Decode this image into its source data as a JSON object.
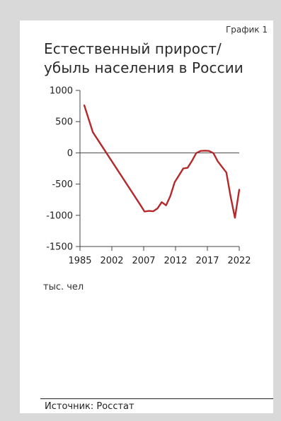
{
  "figure_number": "График 1",
  "title_lines": [
    "Естественный прирост/",
    "убыль населения в России"
  ],
  "unit_label": "тыс. чел",
  "source": "Источник: Росстат",
  "colors": {
    "series": "#b5292b",
    "axis": "#444444",
    "background": "#d9d9d9"
  },
  "chart_data": {
    "type": "line",
    "title": "Естественный прирост/ убыль населения в России",
    "ylabel": "тыс. чел",
    "xlim": [
      1985,
      2022
    ],
    "ylim": [
      -1500,
      1000
    ],
    "x_ticks": [
      1985,
      2002,
      2007,
      2012,
      2017,
      2022
    ],
    "y_ticks": [
      1000,
      500,
      0,
      -500,
      -1000,
      -1500
    ],
    "y_tick_labels": [
      "1000",
      "500",
      "0",
      "-500",
      "-1000",
      "-1500"
    ],
    "grid": false,
    "series": [
      {
        "x": [
          1986,
          1988,
          1999,
          2000,
          2001,
          2002,
          2003,
          2004,
          2005,
          2006,
          2007,
          2008,
          2009,
          2010,
          2011,
          2012,
          2013,
          2014,
          2015,
          2016,
          2017,
          2018,
          2019,
          2020,
          2021,
          2022
        ],
        "y": [
          760,
          330,
          -830,
          -940,
          -930,
          -935,
          -890,
          -790,
          -840,
          -690,
          -470,
          -360,
          -250,
          -240,
          -130,
          -5,
          30,
          35,
          30,
          -5,
          -135,
          -225,
          -315,
          -700,
          -1040,
          -590
        ]
      }
    ]
  }
}
